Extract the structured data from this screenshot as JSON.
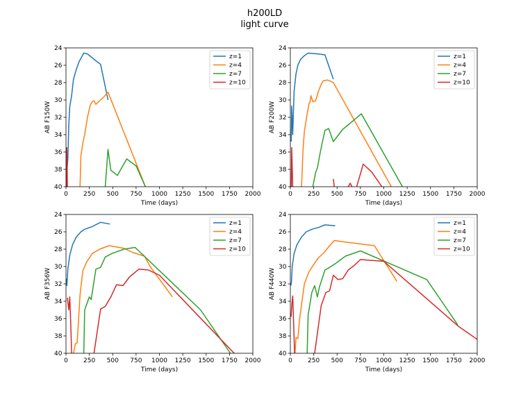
{
  "title_line1": "h200LD",
  "title_line2": "light curve",
  "colors": {
    "z1": "#1f77b4",
    "z4": "#ff7f0e",
    "z7": "#2ca02c",
    "z10": "#d62728"
  },
  "chart_data": [
    {
      "type": "line",
      "xlabel": "Time (days)",
      "ylabel": "AB F150W",
      "xlim": [
        0,
        2000
      ],
      "ylim": [
        40,
        24
      ],
      "xticks": [
        0,
        250,
        500,
        750,
        1000,
        1250,
        1500,
        1750,
        2000
      ],
      "yticks": [
        24,
        26,
        28,
        30,
        32,
        34,
        36,
        38,
        40
      ],
      "legend": "top-right",
      "series": [
        {
          "name": "z=1",
          "color": "#1f77b4",
          "points": [
            [
              10,
              38.2
            ],
            [
              20,
              36.8
            ],
            [
              30,
              33.0
            ],
            [
              40,
              30.8
            ],
            [
              60,
              29.5
            ],
            [
              80,
              27.6
            ],
            [
              110,
              26.5
            ],
            [
              140,
              25.6
            ],
            [
              190,
              24.6
            ],
            [
              230,
              24.7
            ],
            [
              310,
              25.4
            ],
            [
              370,
              25.9
            ],
            [
              450,
              30.0
            ]
          ]
        },
        {
          "name": "z=4",
          "color": "#ff7f0e",
          "points": [
            [
              150,
              40.0
            ],
            [
              160,
              36.4
            ],
            [
              180,
              35.0
            ],
            [
              200,
              34.0
            ],
            [
              230,
              32.0
            ],
            [
              260,
              30.6
            ],
            [
              280,
              30.2
            ],
            [
              300,
              30.1
            ],
            [
              320,
              30.5
            ],
            [
              370,
              30.0
            ],
            [
              410,
              29.6
            ],
            [
              450,
              29.1
            ],
            [
              850,
              40.0
            ]
          ]
        },
        {
          "name": "z=7",
          "color": "#2ca02c",
          "points": [
            [
              420,
              40.0
            ],
            [
              450,
              35.7
            ],
            [
              480,
              38.1
            ],
            [
              550,
              38.7
            ],
            [
              650,
              36.8
            ],
            [
              750,
              37.6
            ],
            [
              850,
              40.0
            ]
          ]
        },
        {
          "name": "z=10",
          "color": "#d62728",
          "points": [
            [
              5,
              40.0
            ],
            [
              8,
              35.5
            ],
            [
              12,
              37.0
            ],
            [
              15,
              40.0
            ]
          ]
        }
      ]
    },
    {
      "type": "line",
      "xlabel": "Time (days)",
      "ylabel": "AB F200W",
      "xlim": [
        0,
        2000
      ],
      "ylim": [
        40,
        24
      ],
      "xticks": [
        0,
        250,
        500,
        750,
        1000,
        1250,
        1500,
        1750,
        2000
      ],
      "yticks": [
        24,
        26,
        28,
        30,
        32,
        34,
        36,
        38,
        40
      ],
      "legend": "top-right",
      "series": [
        {
          "name": "z=1",
          "color": "#1f77b4",
          "points": [
            [
              10,
              34.8
            ],
            [
              15,
              30.7
            ],
            [
              25,
              34.0
            ],
            [
              40,
              29.0
            ],
            [
              60,
              27.0
            ],
            [
              80,
              26.0
            ],
            [
              110,
              25.3
            ],
            [
              150,
              24.9
            ],
            [
              190,
              24.6
            ],
            [
              300,
              24.7
            ],
            [
              370,
              24.8
            ],
            [
              460,
              27.6
            ]
          ]
        },
        {
          "name": "z=4",
          "color": "#ff7f0e",
          "points": [
            [
              120,
              40.0
            ],
            [
              135,
              35.8
            ],
            [
              150,
              33.6
            ],
            [
              180,
              31.6
            ],
            [
              200,
              30.4
            ],
            [
              210,
              30.3
            ],
            [
              220,
              29.5
            ],
            [
              240,
              30.2
            ],
            [
              270,
              30.1
            ],
            [
              300,
              29.0
            ],
            [
              330,
              28.2
            ],
            [
              350,
              27.8
            ],
            [
              400,
              27.7
            ],
            [
              460,
              28.0
            ],
            [
              1080,
              40.0
            ]
          ]
        },
        {
          "name": "z=7",
          "color": "#2ca02c",
          "points": [
            [
              240,
              40.0
            ],
            [
              270,
              38.4
            ],
            [
              290,
              37.8
            ],
            [
              310,
              36.6
            ],
            [
              340,
              35.0
            ],
            [
              370,
              33.5
            ],
            [
              410,
              33.3
            ],
            [
              460,
              34.8
            ],
            [
              560,
              33.4
            ],
            [
              760,
              31.6
            ],
            [
              1200,
              40.0
            ]
          ]
        },
        {
          "name": "z=10",
          "color": "#d62728",
          "points": [
            [
              10,
              40.0
            ],
            [
              15,
              35.5
            ],
            [
              25,
              40.0
            ]
          ]
        },
        {
          "name": "z=10",
          "color": "#d62728",
          "points": [
            [
              460,
              39.1
            ],
            [
              470,
              40.0
            ]
          ]
        },
        {
          "name": "z=10",
          "color": "#d62728",
          "points": [
            [
              620,
              40.0
            ],
            [
              640,
              39.6
            ],
            [
              660,
              40.0
            ]
          ]
        },
        {
          "name": "z=10",
          "color": "#d62728",
          "points": [
            [
              710,
              40.0
            ],
            [
              780,
              37.4
            ],
            [
              870,
              38.3
            ],
            [
              980,
              40.0
            ]
          ]
        }
      ]
    },
    {
      "type": "line",
      "xlabel": "Time (days)",
      "ylabel": "AB F356W",
      "xlim": [
        0,
        2000
      ],
      "ylim": [
        40,
        24
      ],
      "xticks": [
        0,
        250,
        500,
        750,
        1000,
        1250,
        1500,
        1750,
        2000
      ],
      "yticks": [
        24,
        26,
        28,
        30,
        32,
        34,
        36,
        38,
        40
      ],
      "legend": "top-right",
      "series": [
        {
          "name": "z=1",
          "color": "#1f77b4",
          "points": [
            [
              5,
              31.4
            ],
            [
              10,
              32.2
            ],
            [
              20,
              30.3
            ],
            [
              40,
              28.7
            ],
            [
              70,
              27.5
            ],
            [
              110,
              26.6
            ],
            [
              160,
              26.0
            ],
            [
              200,
              25.7
            ],
            [
              280,
              25.4
            ],
            [
              370,
              24.9
            ],
            [
              470,
              25.1
            ]
          ]
        },
        {
          "name": "z=4",
          "color": "#ff7f0e",
          "points": [
            [
              80,
              40.0
            ],
            [
              100,
              38.9
            ],
            [
              120,
              38.8
            ],
            [
              150,
              33.3
            ],
            [
              180,
              30.5
            ],
            [
              220,
              29.5
            ],
            [
              280,
              28.5
            ],
            [
              360,
              28.0
            ],
            [
              460,
              27.6
            ],
            [
              620,
              27.9
            ],
            [
              720,
              28.4
            ],
            [
              840,
              28.8
            ],
            [
              900,
              30.0
            ],
            [
              1140,
              33.5
            ]
          ]
        },
        {
          "name": "z=7",
          "color": "#2ca02c",
          "points": [
            [
              190,
              40.0
            ],
            [
              200,
              35.0
            ],
            [
              250,
              33.5
            ],
            [
              270,
              33.8
            ],
            [
              320,
              30.3
            ],
            [
              370,
              30.1
            ],
            [
              420,
              28.9
            ],
            [
              490,
              28.5
            ],
            [
              620,
              28.0
            ],
            [
              740,
              27.8
            ],
            [
              1440,
              35.0
            ],
            [
              1760,
              40.0
            ]
          ]
        },
        {
          "name": "z=10",
          "color": "#d62728",
          "points": [
            [
              15,
              33.6
            ],
            [
              30,
              35.0
            ],
            [
              40,
              33.5
            ],
            [
              50,
              36.2
            ],
            [
              60,
              40.0
            ]
          ]
        },
        {
          "name": "z=10",
          "color": "#d62728",
          "points": [
            [
              300,
              40.0
            ],
            [
              370,
              34.9
            ],
            [
              420,
              34.6
            ],
            [
              480,
              33.5
            ],
            [
              540,
              32.1
            ],
            [
              610,
              32.2
            ],
            [
              680,
              31.2
            ],
            [
              780,
              30.3
            ],
            [
              880,
              30.4
            ],
            [
              1000,
              31.0
            ],
            [
              1800,
              40.0
            ]
          ]
        }
      ]
    },
    {
      "type": "line",
      "xlabel": "Time (days)",
      "ylabel": "AB F440W",
      "xlim": [
        0,
        2000
      ],
      "ylim": [
        40,
        24
      ],
      "xticks": [
        0,
        250,
        500,
        750,
        1000,
        1250,
        1500,
        1750,
        2000
      ],
      "yticks": [
        24,
        26,
        28,
        30,
        32,
        34,
        36,
        38,
        40
      ],
      "legend": "top-right",
      "series": [
        {
          "name": "z=1",
          "color": "#1f77b4",
          "points": [
            [
              5,
              32.2
            ],
            [
              12,
              31.8
            ],
            [
              20,
              30.0
            ],
            [
              40,
              28.5
            ],
            [
              70,
              27.5
            ],
            [
              120,
              26.6
            ],
            [
              170,
              26.0
            ],
            [
              230,
              25.7
            ],
            [
              300,
              25.5
            ],
            [
              370,
              25.2
            ],
            [
              480,
              25.3
            ]
          ]
        },
        {
          "name": "z=4",
          "color": "#ff7f0e",
          "points": [
            [
              50,
              40.0
            ],
            [
              60,
              38.2
            ],
            [
              80,
              38.3
            ],
            [
              100,
              36.0
            ],
            [
              150,
              32.0
            ],
            [
              200,
              30.6
            ],
            [
              260,
              29.6
            ],
            [
              300,
              29.0
            ],
            [
              360,
              28.4
            ],
            [
              420,
              27.6
            ],
            [
              470,
              27.0
            ],
            [
              600,
              27.2
            ],
            [
              900,
              27.6
            ],
            [
              1140,
              31.7
            ]
          ]
        },
        {
          "name": "z=7",
          "color": "#2ca02c",
          "points": [
            [
              180,
              40.0
            ],
            [
              190,
              35.6
            ],
            [
              230,
              33.0
            ],
            [
              260,
              32.2
            ],
            [
              290,
              33.5
            ],
            [
              310,
              32.4
            ],
            [
              370,
              30.4
            ],
            [
              420,
              30.1
            ],
            [
              490,
              29.6
            ],
            [
              590,
              28.8
            ],
            [
              750,
              28.2
            ],
            [
              1460,
              31.5
            ],
            [
              1790,
              36.7
            ]
          ]
        },
        {
          "name": "z=10",
          "color": "#d62728",
          "points": [
            [
              8,
              35.8
            ],
            [
              15,
              34.5
            ],
            [
              25,
              33.4
            ],
            [
              35,
              36.5
            ],
            [
              45,
              40.0
            ]
          ]
        },
        {
          "name": "z=10",
          "color": "#d62728",
          "points": [
            [
              260,
              40.0
            ],
            [
              330,
              34.5
            ],
            [
              380,
              33.0
            ],
            [
              420,
              32.8
            ],
            [
              460,
              31.0
            ],
            [
              510,
              31.5
            ],
            [
              560,
              31.4
            ],
            [
              620,
              30.4
            ],
            [
              680,
              29.9
            ],
            [
              750,
              29.2
            ],
            [
              1000,
              29.4
            ],
            [
              1800,
              36.9
            ],
            [
              2000,
              38.4
            ]
          ]
        }
      ]
    }
  ]
}
